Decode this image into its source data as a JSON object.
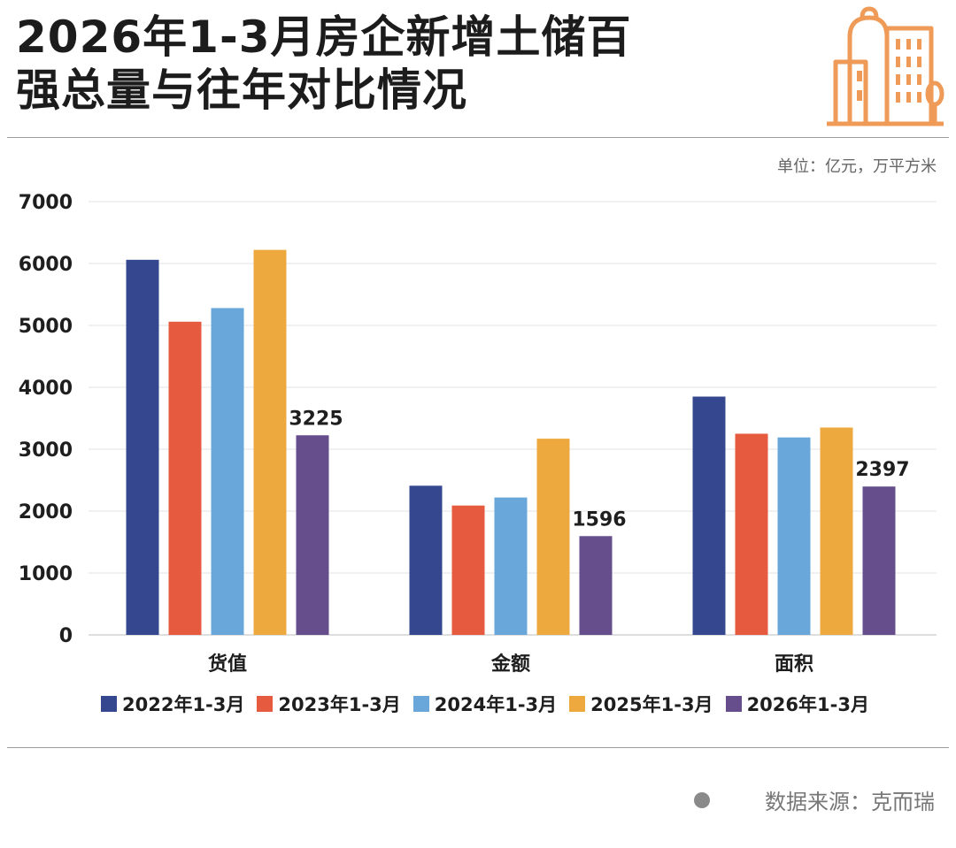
{
  "header": {
    "title_line1": "2026年1-3月房企新增土储百",
    "title_line2": "强总量与往年对比情况"
  },
  "unit_note": "单位：亿元，万平方米",
  "source": {
    "label": "数据来源：克而瑞",
    "icon": "dot-icon"
  },
  "logo": {
    "icon": "city-buildings-icon",
    "color": "#ef9a56"
  },
  "chart_data": {
    "type": "bar",
    "title": "2026年1-3月房企新增土储百强总量与往年对比情况",
    "xlabel": "",
    "ylabel": "",
    "unit": "单位：亿元，万平方米",
    "ylim": [
      0,
      7000
    ],
    "yticks": [
      0,
      1000,
      2000,
      3000,
      4000,
      5000,
      6000,
      7000
    ],
    "grid": true,
    "legend_position": "bottom",
    "categories": [
      "货值",
      "金额",
      "面积"
    ],
    "series": [
      {
        "name": "2022年1-3月",
        "color": "#35478f",
        "values": [
          6060,
          2410,
          3850
        ],
        "labels": [
          null,
          null,
          null
        ]
      },
      {
        "name": "2023年1-3月",
        "color": "#e65b3f",
        "values": [
          5060,
          2090,
          3250
        ],
        "labels": [
          null,
          null,
          null
        ]
      },
      {
        "name": "2024年1-3月",
        "color": "#69a7da",
        "values": [
          5280,
          2220,
          3190
        ],
        "labels": [
          null,
          null,
          null
        ]
      },
      {
        "name": "2025年1-3月",
        "color": "#eea93e",
        "values": [
          6220,
          3170,
          3350
        ],
        "labels": [
          null,
          null,
          null
        ]
      },
      {
        "name": "2026年1-3月",
        "color": "#654e8b",
        "values": [
          3225,
          1596,
          2397
        ],
        "labels": [
          "3225",
          "1596",
          "2397"
        ]
      }
    ]
  }
}
